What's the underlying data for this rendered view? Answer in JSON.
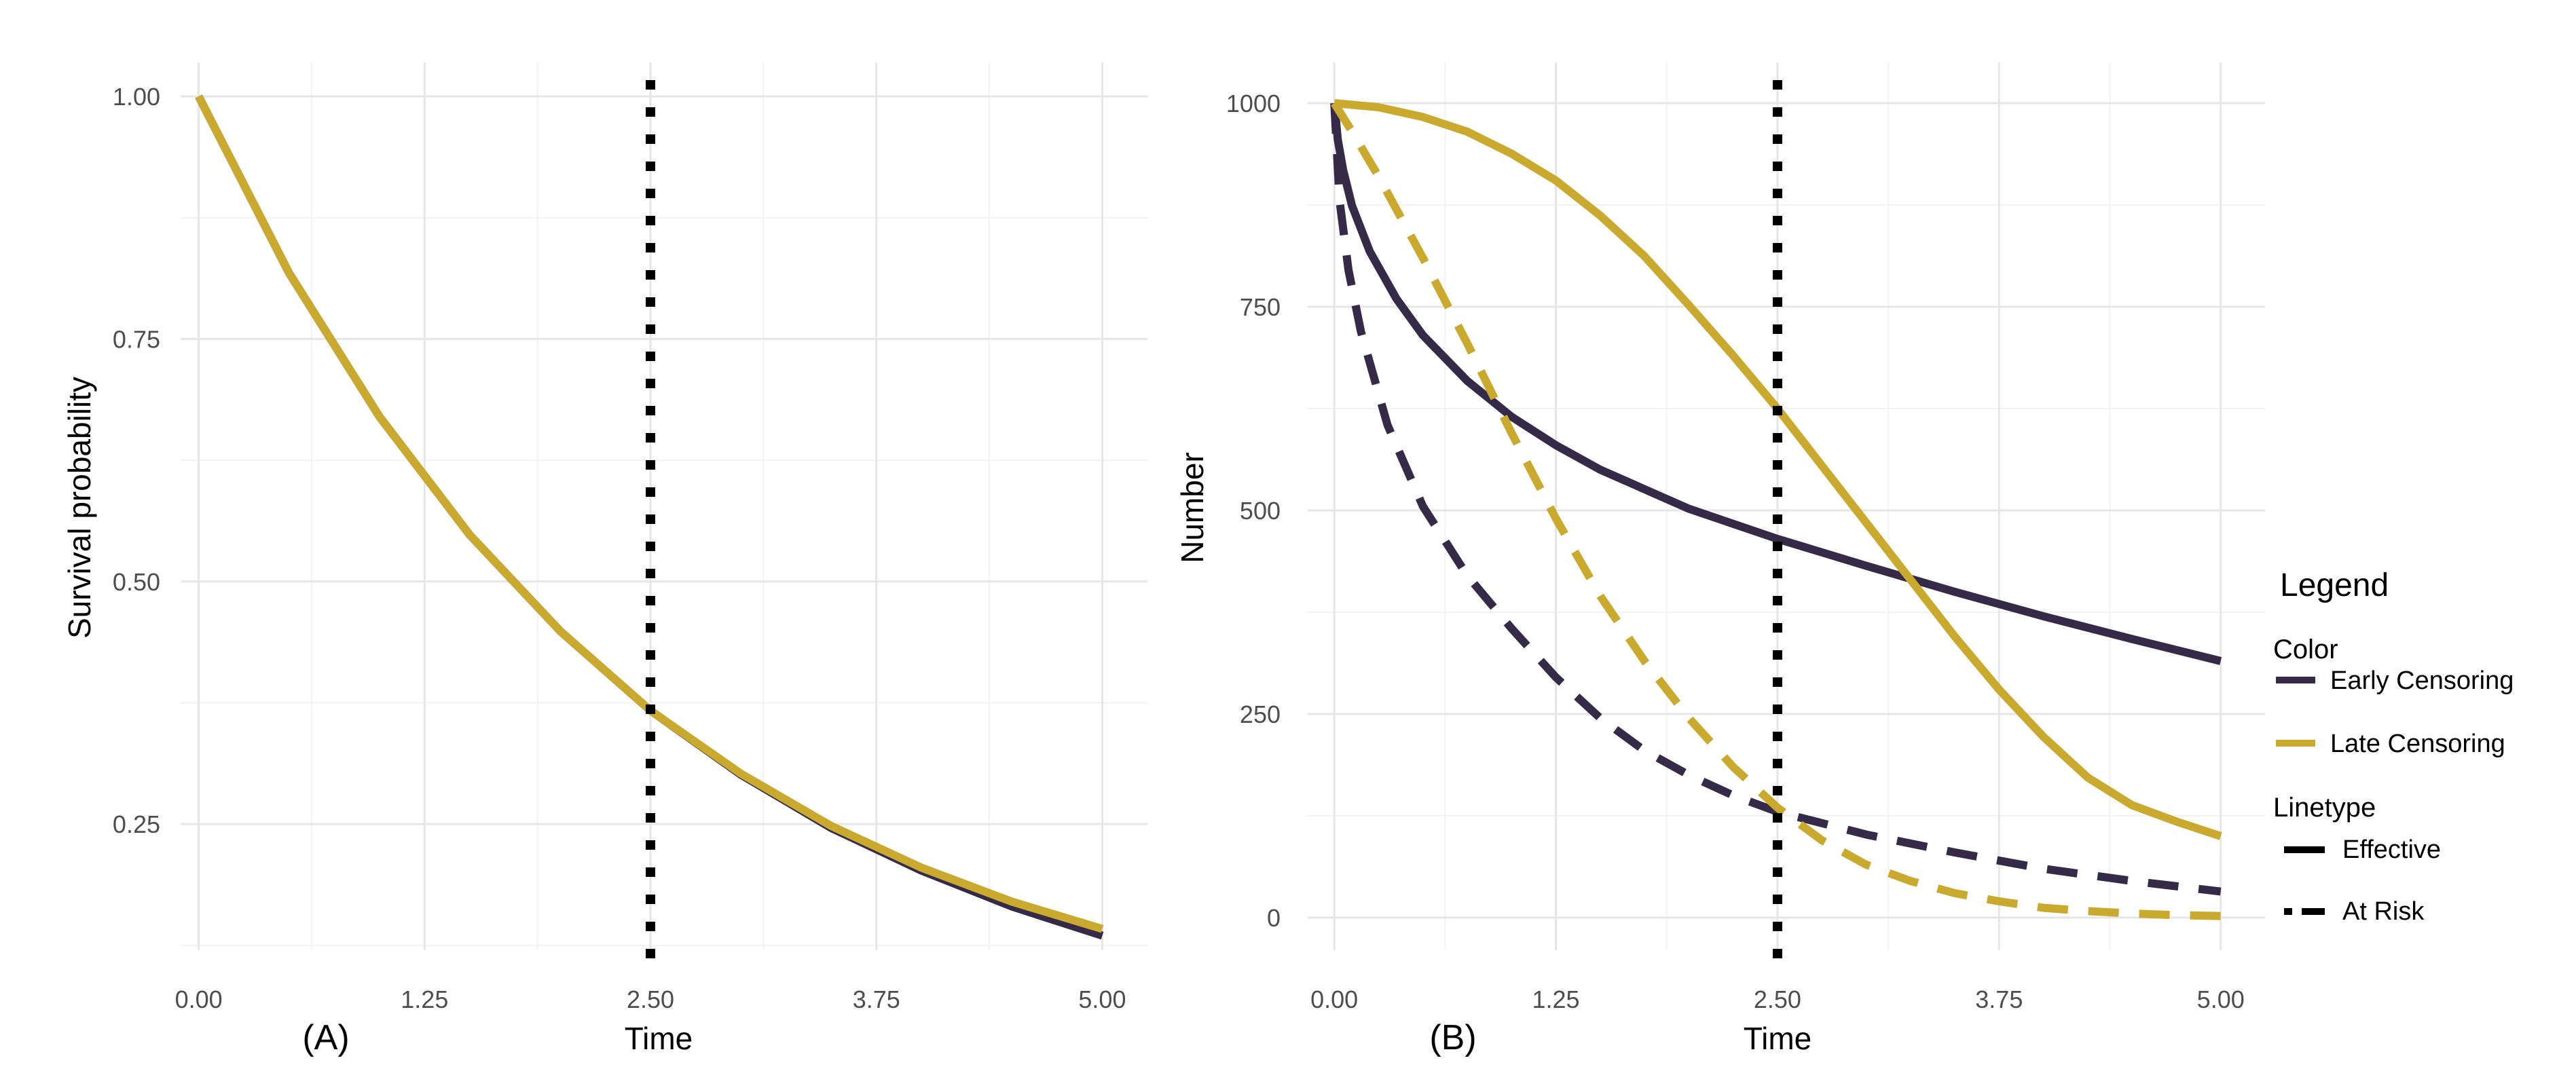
{
  "chart_data": [
    {
      "type": "line",
      "panel_label": "(A)",
      "xlabel": "Time",
      "ylabel": "Survival probability",
      "xlim": [
        -0.1,
        5.25
      ],
      "ylim": [
        0.12,
        1.035
      ],
      "x_ticks": [
        "0.00",
        "1.25",
        "2.50",
        "3.75",
        "5.00"
      ],
      "y_ticks": [
        "0.25",
        "0.50",
        "0.75",
        "1.00"
      ],
      "grid": true,
      "vline": {
        "x": 2.5,
        "style": "dotted",
        "color": "#000000"
      },
      "series": [
        {
          "name": "Early Censoring",
          "linetype": "Effective",
          "x": [
            0,
            0.5,
            1.0,
            1.5,
            2.0,
            2.5,
            3.0,
            3.5,
            4.0,
            4.5,
            5.0
          ],
          "y": [
            1.0,
            0.818,
            0.67,
            0.548,
            0.449,
            0.367,
            0.301,
            0.246,
            0.202,
            0.165,
            0.135
          ]
        },
        {
          "name": "Late Censoring",
          "linetype": "Effective",
          "x": [
            0,
            0.5,
            1.0,
            1.5,
            2.0,
            2.5,
            3.0,
            3.5,
            4.0,
            4.5,
            5.0
          ],
          "y": [
            1.0,
            0.818,
            0.67,
            0.548,
            0.449,
            0.367,
            0.302,
            0.248,
            0.205,
            0.17,
            0.142
          ]
        }
      ]
    },
    {
      "type": "line",
      "panel_label": "(B)",
      "xlabel": "Time",
      "ylabel": "Number",
      "xlim": [
        -0.15,
        5.25
      ],
      "ylim": [
        -40,
        1050
      ],
      "x_ticks": [
        "0.00",
        "1.25",
        "2.50",
        "3.75",
        "5.00"
      ],
      "y_ticks": [
        "0",
        "250",
        "500",
        "750",
        "1000"
      ],
      "grid": true,
      "vline": {
        "x": 2.5,
        "style": "dotted",
        "color": "#000000"
      },
      "series": [
        {
          "name": "Early Censoring",
          "linetype": "Effective",
          "x": [
            0,
            0.02,
            0.05,
            0.1,
            0.2,
            0.35,
            0.5,
            0.75,
            1.0,
            1.25,
            1.5,
            2.0,
            2.5,
            3.0,
            3.5,
            4.0,
            4.5,
            5.0
          ],
          "y": [
            1000,
            955,
            918,
            874,
            818,
            760,
            715,
            659,
            615,
            580,
            550,
            502,
            465,
            432,
            400,
            370,
            342,
            315
          ]
        },
        {
          "name": "Early Censoring",
          "linetype": "At Risk",
          "x": [
            0,
            0.03,
            0.08,
            0.15,
            0.3,
            0.5,
            0.75,
            1.0,
            1.25,
            1.5,
            1.75,
            2.0,
            2.25,
            2.5,
            3.0,
            3.5,
            4.0,
            4.5,
            5.0
          ],
          "y": [
            1000,
            880,
            795,
            720,
            605,
            505,
            420,
            355,
            295,
            245,
            205,
            175,
            150,
            130,
            102,
            80,
            60,
            45,
            32
          ]
        },
        {
          "name": "Late Censoring",
          "linetype": "Effective",
          "x": [
            0,
            0.25,
            0.5,
            0.75,
            1.0,
            1.25,
            1.5,
            1.75,
            2.0,
            2.25,
            2.5,
            2.75,
            3.0,
            3.25,
            3.5,
            3.75,
            4.0,
            4.25,
            4.5,
            4.75,
            5.0
          ],
          "y": [
            1000,
            995,
            983,
            965,
            938,
            905,
            862,
            812,
            752,
            690,
            625,
            555,
            485,
            415,
            345,
            280,
            222,
            172,
            138,
            118,
            100
          ]
        },
        {
          "name": "Late Censoring",
          "linetype": "At Risk",
          "x": [
            0,
            0.1,
            0.25,
            0.5,
            0.75,
            1.0,
            1.25,
            1.5,
            1.75,
            2.0,
            2.25,
            2.5,
            2.75,
            3.0,
            3.25,
            3.5,
            3.75,
            4.0,
            4.25,
            4.5,
            4.75,
            5.0
          ],
          "y": [
            1000,
            965,
            910,
            810,
            705,
            595,
            490,
            395,
            315,
            245,
            185,
            135,
            95,
            65,
            45,
            30,
            20,
            12,
            8,
            5,
            3,
            2
          ]
        }
      ]
    }
  ],
  "legend": {
    "title": "Legend",
    "placement": "right",
    "color_title": "Color",
    "color_items": [
      {
        "label": "Early Censoring",
        "color": "#352a47"
      },
      {
        "label": "Late Censoring",
        "color": "#c9aa2e"
      }
    ],
    "linetype_title": "Linetype",
    "linetype_items": [
      {
        "label": "Effective",
        "style": "solid"
      },
      {
        "label": "At Risk",
        "style": "dashed"
      }
    ]
  },
  "colors": {
    "early": "#352a47",
    "late": "#c9aa2e",
    "vline": "#000000",
    "grid_major": "#e6e6e6",
    "grid_minor": "#f2f2f2"
  }
}
